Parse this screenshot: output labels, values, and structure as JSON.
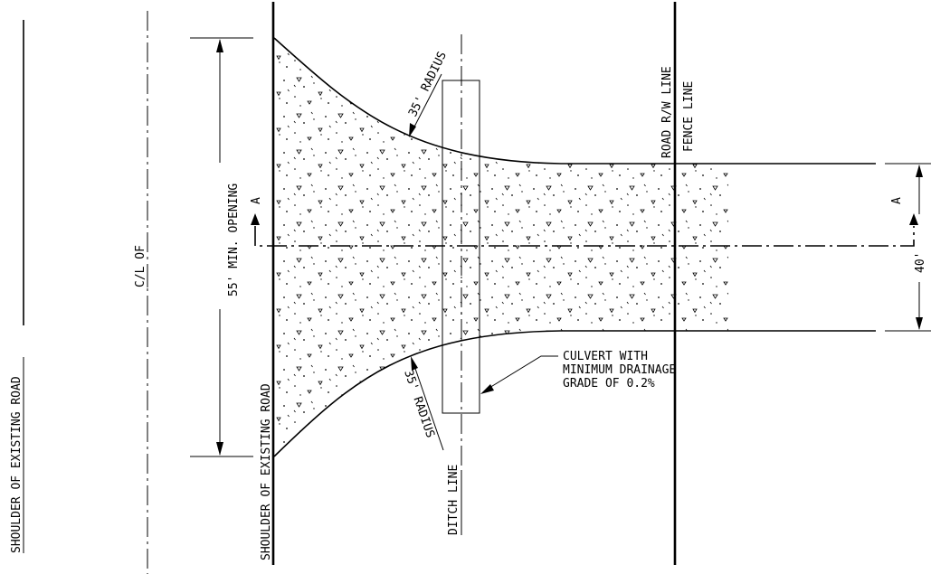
{
  "labels": {
    "shoulder_far": "SHOULDER OF EXISTING ROAD",
    "centerline_of": "C/L OF",
    "shoulder_near": "SHOULDER OF EXISTING ROAD",
    "min_opening": "55' MIN. OPENING",
    "radius_top": "35' RADIUS",
    "radius_bottom": "35' RADIUS",
    "ditch_line": "DITCH LINE",
    "road_rw_line": "ROAD R/W LINE",
    "fence_line": "FENCE LINE",
    "section_left": "A",
    "section_right": "A",
    "width_40": "40'",
    "culvert_note": [
      "CULVERT WITH",
      "MINIMUM DRAINAGE",
      "GRADE OF 0.2%"
    ]
  }
}
